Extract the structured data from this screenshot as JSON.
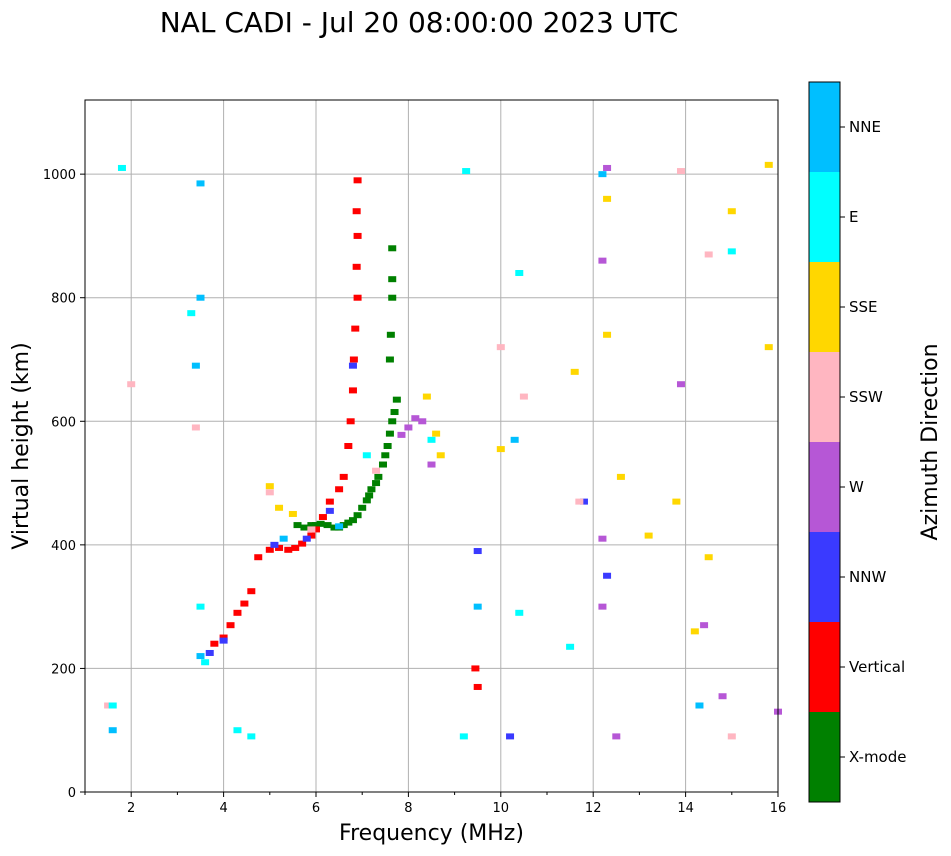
{
  "chart_data": {
    "type": "scatter",
    "title": "NAL CADI - Jul 20 08:00:00 2023 UTC",
    "xlabel": "Frequency (MHz)",
    "ylabel": "Virtual height (km)",
    "xlim": [
      1,
      16
    ],
    "ylim": [
      0,
      1120
    ],
    "xticks": [
      2,
      4,
      6,
      8,
      10,
      12,
      14,
      16
    ],
    "xtick_labels": [
      "2",
      "4",
      "6",
      "8",
      "10",
      "12",
      "14",
      "16"
    ],
    "yticks": [
      0,
      200,
      400,
      600,
      800,
      1000
    ],
    "ytick_labels": [
      "0",
      "200",
      "400",
      "600",
      "800",
      "1000"
    ],
    "grid": true,
    "colorbar": {
      "label": "Azimuth Direction",
      "categories": [
        "X-mode",
        "Vertical",
        "NNW",
        "W",
        "SSW",
        "SSE",
        "E",
        "NNE"
      ],
      "colors": [
        "#008000",
        "#ff0000",
        "#3a3aff",
        "#b657d6",
        "#ffb6c1",
        "#ffd700",
        "#00ffff",
        "#00bfff"
      ]
    },
    "series": [
      {
        "name": "X-mode",
        "points": [
          [
            5.6,
            432
          ],
          [
            5.75,
            428
          ],
          [
            5.9,
            432
          ],
          [
            6.0,
            432
          ],
          [
            6.1,
            434
          ],
          [
            6.25,
            432
          ],
          [
            6.4,
            428
          ],
          [
            6.5,
            428
          ],
          [
            6.6,
            432
          ],
          [
            6.7,
            436
          ],
          [
            6.8,
            440
          ],
          [
            6.9,
            448
          ],
          [
            7.0,
            460
          ],
          [
            7.1,
            472
          ],
          [
            7.15,
            480
          ],
          [
            7.2,
            490
          ],
          [
            7.3,
            500
          ],
          [
            7.35,
            510
          ],
          [
            7.45,
            530
          ],
          [
            7.5,
            545
          ],
          [
            7.55,
            560
          ],
          [
            7.6,
            580
          ],
          [
            7.65,
            600
          ],
          [
            7.7,
            615
          ],
          [
            7.75,
            635
          ],
          [
            7.6,
            700
          ],
          [
            7.62,
            740
          ],
          [
            7.65,
            800
          ],
          [
            7.65,
            830
          ],
          [
            7.65,
            880
          ]
        ]
      },
      {
        "name": "Vertical",
        "points": [
          [
            3.8,
            240
          ],
          [
            4.0,
            250
          ],
          [
            4.15,
            270
          ],
          [
            4.3,
            290
          ],
          [
            4.45,
            305
          ],
          [
            4.6,
            325
          ],
          [
            4.75,
            380
          ],
          [
            5.0,
            392
          ],
          [
            5.2,
            395
          ],
          [
            5.4,
            392
          ],
          [
            5.55,
            395
          ],
          [
            5.7,
            402
          ],
          [
            5.9,
            415
          ],
          [
            6.0,
            425
          ],
          [
            6.15,
            445
          ],
          [
            6.3,
            470
          ],
          [
            6.5,
            490
          ],
          [
            6.6,
            510
          ],
          [
            6.7,
            560
          ],
          [
            6.75,
            600
          ],
          [
            6.8,
            650
          ],
          [
            6.82,
            700
          ],
          [
            6.85,
            750
          ],
          [
            6.9,
            800
          ],
          [
            6.88,
            850
          ],
          [
            6.9,
            900
          ],
          [
            6.88,
            940
          ],
          [
            6.9,
            990
          ],
          [
            9.45,
            200
          ],
          [
            9.5,
            170
          ]
        ]
      },
      {
        "name": "NNW",
        "points": [
          [
            3.7,
            225
          ],
          [
            4.0,
            245
          ],
          [
            5.1,
            400
          ],
          [
            5.8,
            410
          ],
          [
            6.3,
            455
          ],
          [
            6.8,
            690
          ],
          [
            9.5,
            390
          ],
          [
            10.2,
            90
          ],
          [
            11.8,
            470
          ],
          [
            12.3,
            350
          ]
        ]
      },
      {
        "name": "W",
        "points": [
          [
            7.85,
            578
          ],
          [
            8.0,
            590
          ],
          [
            8.15,
            605
          ],
          [
            8.3,
            600
          ],
          [
            8.5,
            530
          ],
          [
            12.3,
            1010
          ],
          [
            12.2,
            860
          ],
          [
            12.2,
            410
          ],
          [
            12.2,
            300
          ],
          [
            12.5,
            90
          ],
          [
            13.9,
            660
          ],
          [
            14.4,
            270
          ],
          [
            14.8,
            155
          ],
          [
            16.0,
            130
          ]
        ]
      },
      {
        "name": "SSW",
        "points": [
          [
            1.5,
            140
          ],
          [
            2.0,
            660
          ],
          [
            3.4,
            590
          ],
          [
            5.0,
            485
          ],
          [
            5.9,
            425
          ],
          [
            7.3,
            520
          ],
          [
            10.0,
            720
          ],
          [
            10.5,
            640
          ],
          [
            11.7,
            470
          ],
          [
            13.9,
            1005
          ],
          [
            14.5,
            870
          ],
          [
            15.0,
            90
          ]
        ]
      },
      {
        "name": "SSE",
        "points": [
          [
            5.0,
            495
          ],
          [
            5.2,
            460
          ],
          [
            5.5,
            450
          ],
          [
            8.4,
            640
          ],
          [
            8.6,
            580
          ],
          [
            8.7,
            545
          ],
          [
            10.0,
            555
          ],
          [
            11.6,
            680
          ],
          [
            12.3,
            960
          ],
          [
            12.3,
            740
          ],
          [
            12.6,
            510
          ],
          [
            13.2,
            415
          ],
          [
            13.8,
            470
          ],
          [
            14.5,
            380
          ],
          [
            15.0,
            940
          ],
          [
            15.8,
            1015
          ],
          [
            15.8,
            720
          ],
          [
            14.2,
            260
          ]
        ]
      },
      {
        "name": "E",
        "points": [
          [
            1.6,
            140
          ],
          [
            1.8,
            1010
          ],
          [
            3.3,
            775
          ],
          [
            3.5,
            300
          ],
          [
            3.6,
            210
          ],
          [
            4.3,
            100
          ],
          [
            4.6,
            90
          ],
          [
            7.1,
            545
          ],
          [
            8.5,
            570
          ],
          [
            9.2,
            90
          ],
          [
            9.25,
            1005
          ],
          [
            10.4,
            840
          ],
          [
            10.4,
            290
          ],
          [
            11.5,
            235
          ],
          [
            15.0,
            875
          ]
        ]
      },
      {
        "name": "NNE",
        "points": [
          [
            1.6,
            100
          ],
          [
            3.5,
            985
          ],
          [
            3.5,
            800
          ],
          [
            3.4,
            690
          ],
          [
            3.5,
            220
          ],
          [
            5.3,
            410
          ],
          [
            6.5,
            430
          ],
          [
            9.5,
            300
          ],
          [
            10.3,
            570
          ],
          [
            12.2,
            1000
          ],
          [
            14.3,
            140
          ]
        ]
      }
    ]
  }
}
